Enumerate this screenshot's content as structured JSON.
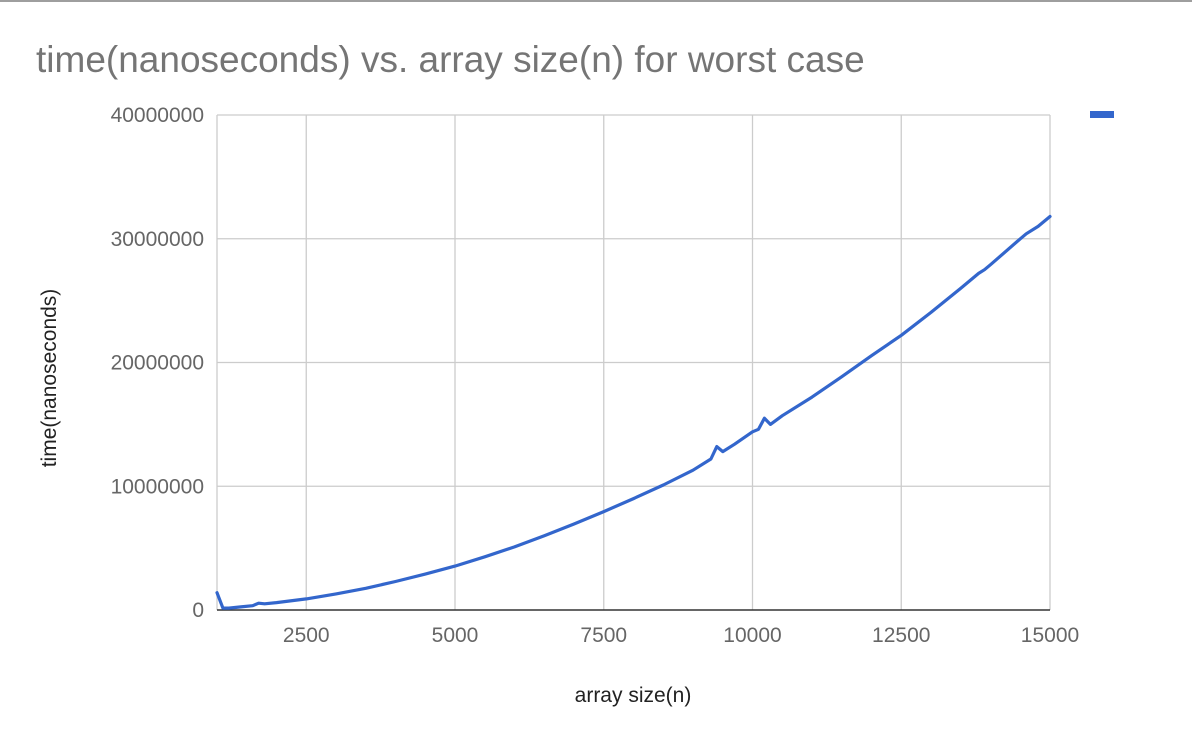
{
  "chart_data": {
    "type": "line",
    "title": "time(nanoseconds) vs. array size(n) for worst case",
    "xlabel": "array size(n)",
    "ylabel": "time(nanoseconds)",
    "xlim": [
      1000,
      15000
    ],
    "ylim": [
      0,
      40000000
    ],
    "x_ticks": [
      2500,
      5000,
      7500,
      10000,
      12500,
      15000
    ],
    "y_ticks": [
      0,
      10000000,
      20000000,
      30000000,
      40000000
    ],
    "x_tick_labels": [
      "2500",
      "5000",
      "7500",
      "10000",
      "12500",
      "15000"
    ],
    "y_tick_labels": [
      "0",
      "10000000",
      "20000000",
      "30000000",
      "40000000"
    ],
    "grid": true,
    "legend_position": "top-right",
    "series": [
      {
        "name": "",
        "color": "#3366cc",
        "x": [
          1000,
          1100,
          1200,
          1400,
          1600,
          1700,
          1800,
          2000,
          2500,
          3000,
          3500,
          4000,
          4500,
          5000,
          5500,
          6000,
          6500,
          7000,
          7500,
          8000,
          8500,
          9000,
          9300,
          9400,
          9500,
          9700,
          10000,
          10100,
          10200,
          10300,
          10500,
          11000,
          11500,
          12000,
          12500,
          13000,
          13500,
          13800,
          13900,
          14000,
          14500,
          14600,
          14800,
          15000
        ],
        "values": [
          1400000,
          150000,
          150000,
          250000,
          350000,
          550000,
          500000,
          600000,
          900000,
          1300000,
          1750000,
          2300000,
          2900000,
          3550000,
          4300000,
          5100000,
          6000000,
          6950000,
          7950000,
          9000000,
          10100000,
          11300000,
          12200000,
          13200000,
          12800000,
          13400000,
          14400000,
          14600000,
          15500000,
          15000000,
          15700000,
          17200000,
          18850000,
          20550000,
          22200000,
          24050000,
          26000000,
          27200000,
          27500000,
          27900000,
          30000000,
          30400000,
          31000000,
          31800000
        ]
      }
    ]
  }
}
